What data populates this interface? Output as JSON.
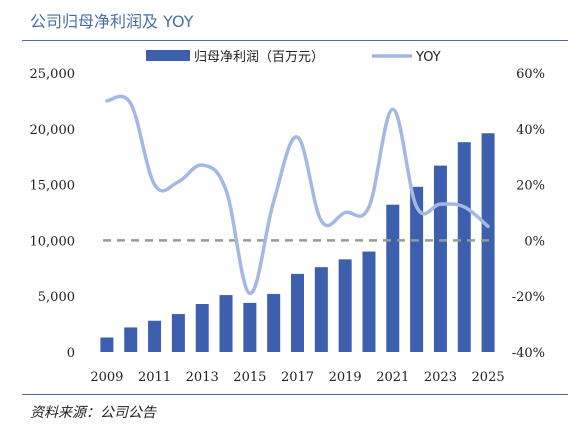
{
  "header": {
    "title": "公司归母净利润及 YOY"
  },
  "footer": {
    "source": "资料来源：公司公告"
  },
  "colors": {
    "bar": "#3d5fae",
    "line": "#a3b8e3",
    "baseline": "#999999",
    "rule": "#4a6fa5"
  },
  "chart_data": {
    "type": "bar",
    "categories": [
      "2009",
      "2010",
      "2011",
      "2012",
      "2013",
      "2014",
      "2015",
      "2016",
      "2017",
      "2018",
      "2019",
      "2020",
      "2021",
      "2022",
      "2023",
      "2024",
      "2025"
    ],
    "xtick_labels": [
      "2009",
      "2011",
      "2013",
      "2015",
      "2017",
      "2019",
      "2021",
      "2023",
      "2025"
    ],
    "series": [
      {
        "name": "归母净利润（百万元）",
        "type": "bar",
        "axis": "left",
        "values": [
          1300,
          2200,
          2800,
          3400,
          4300,
          5100,
          4400,
          5200,
          7000,
          7600,
          8300,
          9000,
          13200,
          14800,
          16700,
          18800,
          19600
        ]
      },
      {
        "name": "YOY",
        "type": "line",
        "axis": "right",
        "values": [
          50,
          49,
          20,
          21,
          27,
          18,
          -19,
          14,
          37,
          7,
          10,
          12,
          47,
          12,
          13,
          12,
          5
        ]
      }
    ],
    "left_axis": {
      "ylim": [
        0,
        25000
      ],
      "ticks": [
        "0",
        "5,000",
        "10,000",
        "15,000",
        "20,000",
        "25,000"
      ]
    },
    "right_axis": {
      "ylim": [
        -40,
        60
      ],
      "ticks": [
        "-40%",
        "-20%",
        "0%",
        "20%",
        "40%",
        "60%"
      ]
    },
    "reference_line": {
      "axis": "right",
      "value": 0,
      "style": "dashed"
    },
    "legend": {
      "position": "top"
    }
  }
}
